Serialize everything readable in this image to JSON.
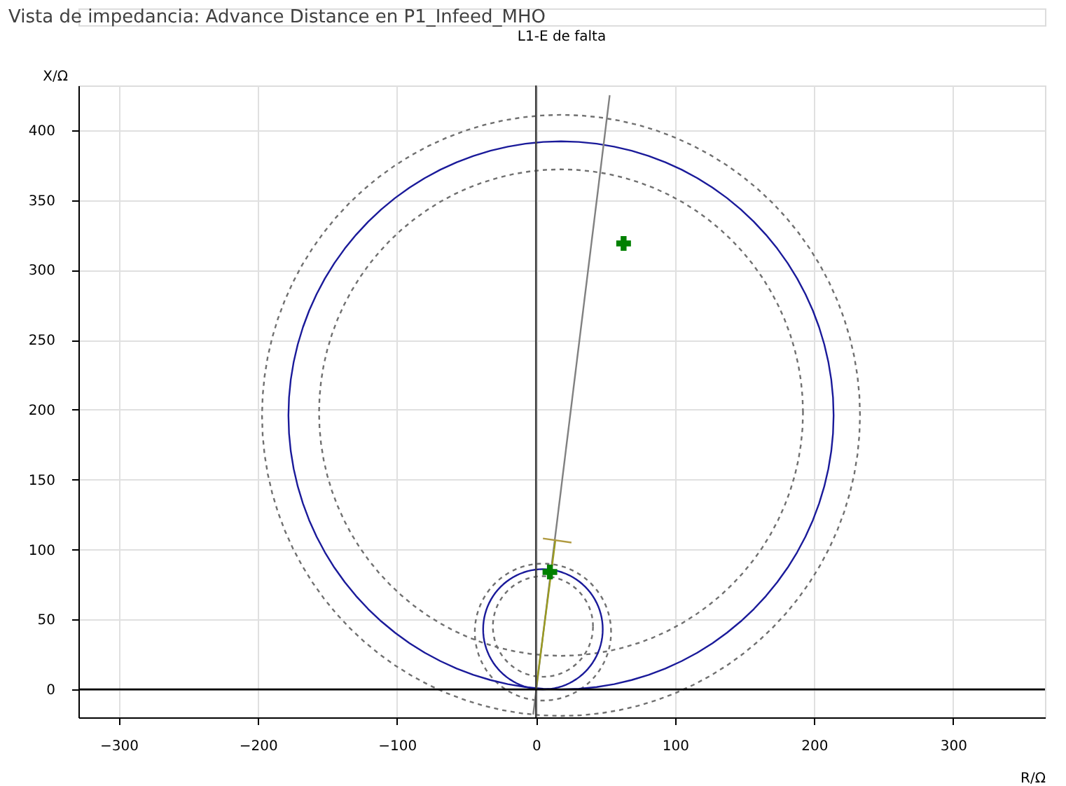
{
  "chart_data": {
    "type": "line",
    "title": "Vista de impedancia: Advance Distance en P1_Infeed_MHO",
    "subtitle": "L1-E de falta",
    "xlabel": "R/Ω",
    "ylabel": "X/Ω",
    "xlim": [
      -329,
      366
    ],
    "ylim": [
      -20,
      432
    ],
    "xticks": [
      -300,
      -200,
      -100,
      0,
      100,
      200,
      300
    ],
    "yticks": [
      0,
      50,
      100,
      150,
      200,
      250,
      300,
      350,
      400
    ],
    "grid": true,
    "ref_lines": [
      {
        "axis": "x",
        "value": 0,
        "color": "#404040"
      },
      {
        "axis": "y",
        "value": 0,
        "color": "#000000"
      }
    ],
    "series": [
      {
        "color": "#808080",
        "line_style": "solid",
        "x": [
          -2,
          53
        ],
        "values": [
          -18,
          425
        ]
      },
      {
        "color": "#9a9a20",
        "line_style": "solid",
        "x": [
          0,
          14
        ],
        "values": [
          0,
          107
        ]
      },
      {
        "color": "#b09a40",
        "line_style": "solid",
        "x": [
          5,
          25.5
        ],
        "values": [
          108,
          105
        ]
      },
      {
        "type": "scatter",
        "color": "#008000",
        "marker": "cross",
        "x": [
          63,
          10
        ],
        "values": [
          319,
          84
        ]
      }
    ]
  }
}
